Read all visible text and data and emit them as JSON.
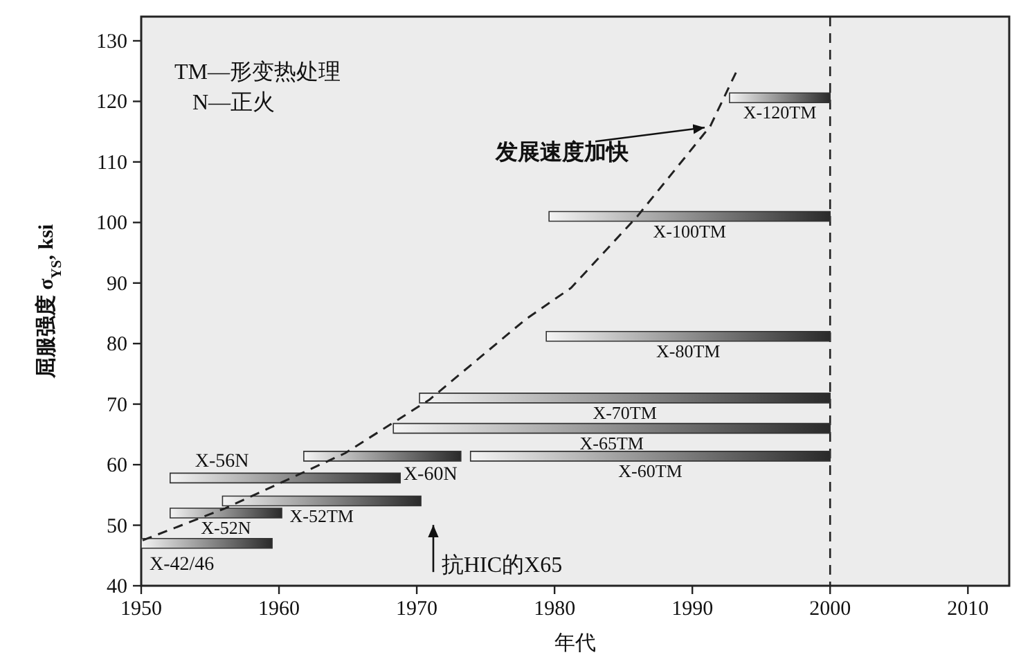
{
  "chart_data": {
    "type": "line",
    "xlabel": "年代",
    "ylabel": "屈服强度 σ$_{YS}$, ksi",
    "xlim": [
      1950,
      2013
    ],
    "ylim": [
      40,
      134
    ],
    "xticks": [
      1950,
      1960,
      1970,
      1980,
      1990,
      2000,
      2010
    ],
    "yticks": [
      40,
      50,
      60,
      70,
      80,
      90,
      100,
      110,
      120,
      130
    ],
    "grid": false,
    "ref_lines": [
      {
        "axis": "x",
        "value": 2000,
        "label": null,
        "color": "#222222",
        "line_style": "dashed"
      }
    ],
    "annotations": [
      "TM—形变热处理",
      "N—正火",
      {
        "text": "发展速度加快",
        "x": 1991.3,
        "y": 115.9
      },
      "抗HIC的X65"
    ],
    "series": [
      {
        "name": "X-42/46",
        "color": "#2a2a2a",
        "x": [
          1950,
          1959.5
        ],
        "values": [
          47,
          47
        ]
      },
      {
        "name": "X-52N",
        "color": "#2a2a2a",
        "x": [
          1952.1,
          1960.2
        ],
        "values": [
          52,
          52
        ]
      },
      {
        "name": "X-52TM",
        "color": "#2a2a2a",
        "x": [
          1955.9,
          1970.3
        ],
        "values": [
          54,
          54
        ]
      },
      {
        "name": "X-56N",
        "color": "#2a2a2a",
        "x": [
          1952.1,
          1968.8
        ],
        "values": [
          57.8,
          57.8
        ]
      },
      {
        "name": "X-60N",
        "color": "#2a2a2a",
        "x": [
          1961.8,
          1973.2
        ],
        "values": [
          61.4,
          61.4
        ]
      },
      {
        "name": "X-60TM",
        "color": "#2a2a2a",
        "x": [
          1973.9,
          2000
        ],
        "values": [
          61.4,
          61.4
        ]
      },
      {
        "name": "X-65TM",
        "color": "#2a2a2a",
        "x": [
          1968.3,
          2000
        ],
        "values": [
          66,
          66
        ]
      },
      {
        "name": "X-70TM",
        "color": "#2a2a2a",
        "x": [
          1970.2,
          2000
        ],
        "values": [
          71,
          71
        ]
      },
      {
        "name": "X-80TM",
        "color": "#2a2a2a",
        "x": [
          1979.4,
          2000
        ],
        "values": [
          81.2,
          81.2
        ]
      },
      {
        "name": "X-100TM",
        "color": "#2a2a2a",
        "x": [
          1979.6,
          2000
        ],
        "values": [
          101,
          101
        ]
      },
      {
        "name": "X-120TM",
        "color": "#2a2a2a",
        "x": [
          1992.7,
          2000
        ],
        "values": [
          120.6,
          120.6
        ]
      },
      {
        "color": "#222222",
        "line_style": "dashed",
        "x": [
          1950.1,
          1956.1,
          1964.8,
          1970.9,
          1977.9,
          1981.2,
          1986,
          1991.3,
          1993.3
        ],
        "values": [
          47.5,
          52.8,
          61.9,
          70.7,
          84,
          89.2,
          101,
          115.9,
          125.4
        ]
      }
    ]
  }
}
